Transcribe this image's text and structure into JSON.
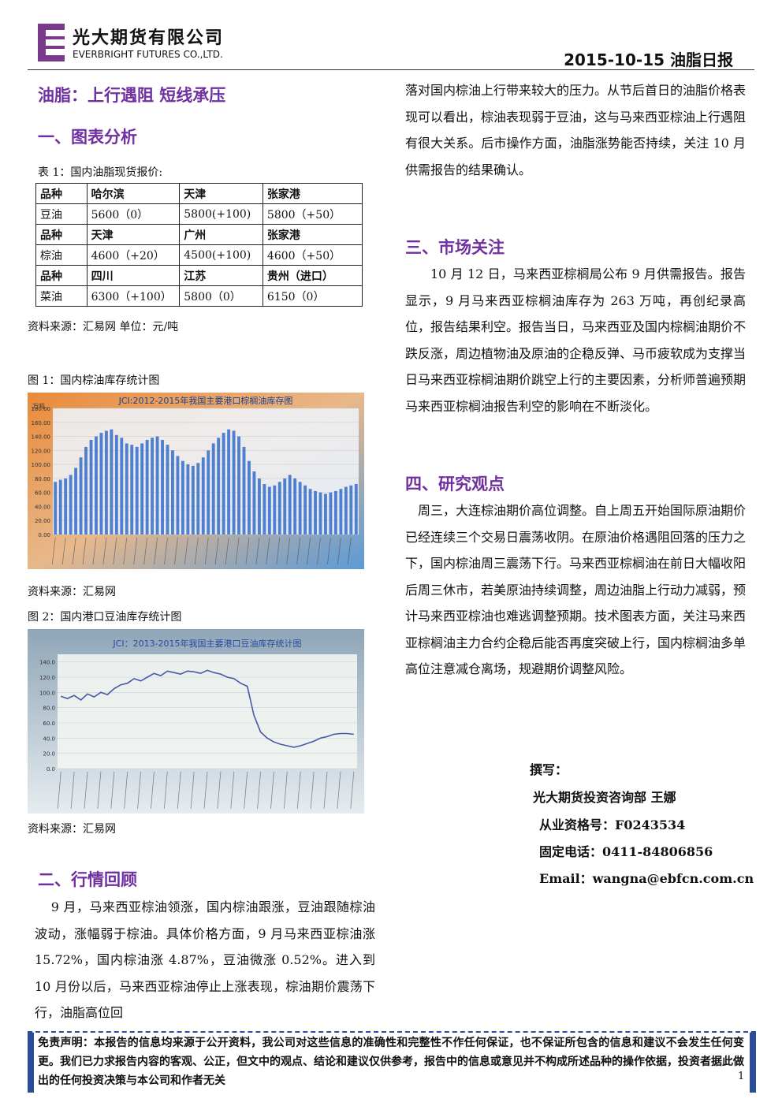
{
  "header": {
    "company_cn": "光大期货有限公司",
    "company_en": "EVERBRIGHT FUTURES CO.,LTD.",
    "date_title": "2015-10-15 油脂日报"
  },
  "title": "油脂：上行遇阻 短线承压",
  "section1": {
    "heading": "一、图表分析",
    "table_caption": "表 1：国内油脂现货报价:",
    "table": {
      "rows": [
        [
          "品种",
          "哈尔滨",
          "天津",
          "张家港"
        ],
        [
          "豆油",
          "5600（0）",
          "5800(+100)",
          "5800（+50）"
        ],
        [
          "品种",
          "天津",
          "广州",
          "张家港"
        ],
        [
          "棕油",
          "4600（+20）",
          "4500(+100)",
          "4600（+50）"
        ],
        [
          "品种",
          "四川",
          "江苏",
          "贵州（进口）"
        ],
        [
          "菜油",
          "6300（+100）",
          "5800（0）",
          "6150（0）"
        ]
      ]
    },
    "table_source": "资料来源：汇易网 单位：元/吨"
  },
  "figures": [
    {
      "caption": "图 1：国内棕油库存统计图",
      "source": "资料来源：汇易网",
      "chart_data": {
        "type": "bar",
        "title": "JCI:2012-2015年我国主要港口棕榈油库存图",
        "ylabel": "万吨",
        "color": "#4f7fd0",
        "ylim": [
          0,
          180
        ],
        "yticks": [
          {
            "value": 0,
            "label": "0.00"
          },
          {
            "value": 20,
            "label": "20.00"
          },
          {
            "value": 40,
            "label": "40.00"
          },
          {
            "value": 60,
            "label": "60.00"
          },
          {
            "value": 80,
            "label": "80.00"
          },
          {
            "value": 100,
            "label": "100.00"
          },
          {
            "value": 120,
            "label": "120.00"
          },
          {
            "value": 140,
            "label": "140.00"
          },
          {
            "value": 160,
            "label": "160.00"
          },
          {
            "value": 180,
            "label": "180.00"
          }
        ],
        "values": [
          75,
          78,
          80,
          85,
          95,
          110,
          125,
          135,
          140,
          145,
          148,
          150,
          142,
          138,
          130,
          128,
          125,
          130,
          135,
          138,
          140,
          135,
          128,
          120,
          112,
          105,
          100,
          98,
          102,
          110,
          120,
          130,
          138,
          145,
          150,
          148,
          140,
          125,
          105,
          90,
          80,
          72,
          68,
          70,
          75,
          80,
          85,
          80,
          75,
          70,
          65,
          62,
          60,
          58,
          60,
          62,
          65,
          68,
          70,
          72
        ]
      }
    },
    {
      "caption": "图 2：国内港口豆油库存统计图",
      "source": "资料来源：汇易网",
      "chart_data": {
        "type": "line",
        "title": "JCI：2013-2015年我国主要港口豆油库存统计图",
        "color": "#4a56a8",
        "ylim": [
          0,
          150
        ],
        "yticks": [
          {
            "value": 0,
            "label": "0.0"
          },
          {
            "value": 20,
            "label": "20.0"
          },
          {
            "value": 40,
            "label": "40.0"
          },
          {
            "value": 60,
            "label": "60.0"
          },
          {
            "value": 80,
            "label": "80.0"
          },
          {
            "value": 100,
            "label": "100.0"
          },
          {
            "value": 120,
            "label": "120.0"
          },
          {
            "value": 140,
            "label": "140.0"
          }
        ],
        "values": [
          95,
          92,
          96,
          90,
          98,
          94,
          100,
          97,
          105,
          110,
          112,
          118,
          115,
          120,
          125,
          122,
          128,
          126,
          124,
          128,
          127,
          125,
          129,
          126,
          124,
          120,
          118,
          112,
          108,
          70,
          48,
          40,
          35,
          32,
          30,
          28,
          30,
          33,
          36,
          40,
          42,
          45,
          46,
          46,
          45
        ]
      }
    }
  ],
  "section2": {
    "heading": "二、行情回顾",
    "para_left": "9 月，马来西亚棕油领涨，国内棕油跟涨，豆油跟随棕油波动，涨幅弱于棕油。具体价格方面，9 月马来西亚棕油涨 15.72%，国内棕油涨 4.87%，豆油微涨 0.52%。进入到 10 月份以后，马来西亚棕油停止上涨表现，棕油期价震荡下行，油脂高位回",
    "para_right": "落对国内棕油上行带来较大的压力。从节后首日的油脂价格表现可以看出，棕油表现弱于豆油，这与马来西亚棕油上行遇阻有很大关系。后市操作方面，油脂涨势能否持续，关注 10 月供需报告的结果确认。"
  },
  "section3": {
    "heading": "三、市场关注",
    "para": "10 月 12 日，马来西亚棕榈局公布 9 月供需报告。报告显示，9 月马来西亚棕榈油库存为 263 万吨，再创纪录高位，报告结果利空。报告当日，马来西亚及国内棕榈油期价不跌反涨，周边植物油及原油的企稳反弹、马币疲软成为支撑当日马来西亚棕榈油期价跳空上行的主要因素，分析师普遍预期马来西亚棕榈油报告利空的影响在不断淡化。"
  },
  "section4": {
    "heading": "四、研究观点",
    "para": "周三，大连棕油期价高位调整。自上周五开始国际原油期价已经连续三个交易日震荡收阴。在原油价格遇阻回落的压力之下，国内棕油周三震荡下行。马来西亚棕榈油在前日大幅收阳后周三休市，若美原油持续调整，周边油脂上行动力减弱，预计马来西亚棕油也难逃调整预期。技术图表方面，关注马来西亚棕榈油主力合约企稳后能否再度突破上行，国内棕榈油多单高位注意减仓离场，规避期价调整风险。"
  },
  "author": {
    "label": "撰写：",
    "name": "光大期货投资咨询部 王娜",
    "license": "从业资格号：F0243534",
    "phone": "固定电话：0411-84806856",
    "email": "Email：wangna@ebfcn.com.cn"
  },
  "footer": {
    "disclaimer": "免责声明：本报告的信息均来源于公开资料，我公司对这些信息的准确性和完整性不作任何保证，也不保证所包含的信息和建议不会发生任何变更。我们已力求报告内容的客观、公正，但文中的观点、结论和建议仅供参考，报告中的信息或意见并不构成所述品种的操作依据，投资者据此做出的任何投资决策与本公司和作者无关",
    "page": "1"
  }
}
